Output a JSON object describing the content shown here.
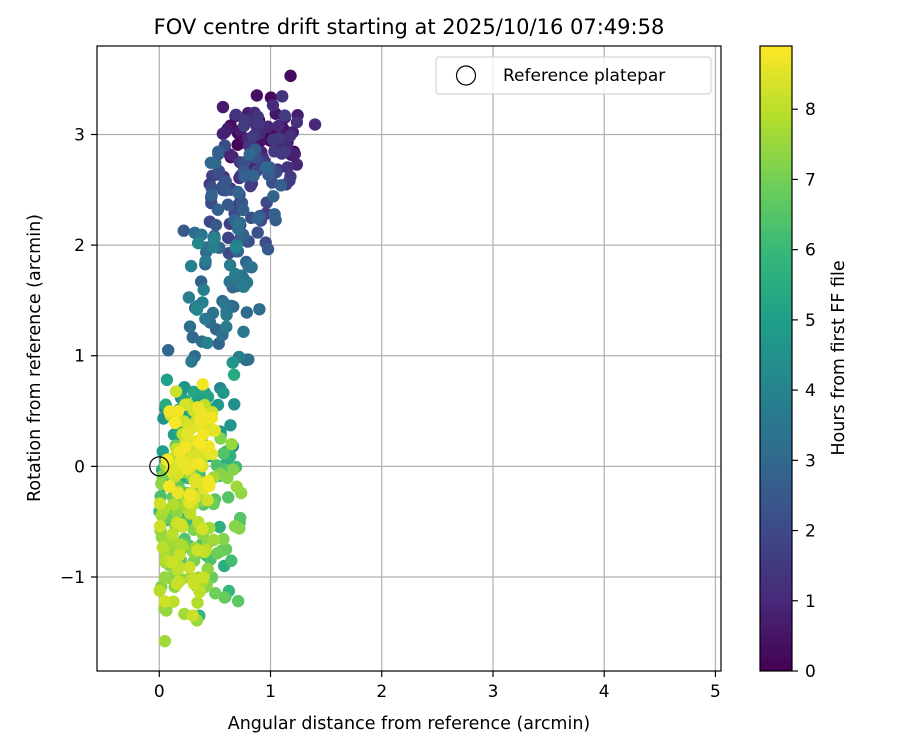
{
  "chart_data": {
    "type": "scatter",
    "title": "FOV centre drift starting at 2025/10/16 07:49:58",
    "xlabel": "Angular distance from reference (arcmin)",
    "ylabel": "Rotation from reference (arcmin)",
    "xlim": [
      -0.56,
      5.05
    ],
    "ylim": [
      -1.85,
      3.8
    ],
    "xticks": [
      0,
      1,
      2,
      3,
      4,
      5
    ],
    "xtick_labels": [
      "0",
      "1",
      "2",
      "3",
      "4",
      "5"
    ],
    "yticks": [
      -1,
      0,
      1,
      2,
      3
    ],
    "ytick_labels": [
      "−1",
      "0",
      "1",
      "2",
      "3"
    ],
    "grid": true,
    "legend": {
      "placement": "top-right",
      "entries": [
        {
          "label": "Reference platepar",
          "marker": "open-circle"
        }
      ]
    },
    "reference_point": {
      "x": 0,
      "y": 0
    },
    "colorbar": {
      "label": "Hours from first FF file",
      "colormap": "viridis",
      "range": [
        0,
        8.9
      ],
      "ticks": [
        0,
        1,
        2,
        3,
        4,
        5,
        6,
        7,
        8
      ],
      "tick_labels": [
        "0",
        "1",
        "2",
        "3",
        "4",
        "5",
        "6",
        "7",
        "8"
      ]
    },
    "clusters": [
      {
        "count": 90,
        "x_range": [
          0.55,
          1.25
        ],
        "y_range": [
          2.4,
          3.45
        ],
        "hours_range": [
          0.0,
          1.6
        ]
      },
      {
        "count": 70,
        "x_range": [
          0.45,
          1.1
        ],
        "y_range": [
          1.8,
          3.0
        ],
        "hours_range": [
          1.5,
          3.0
        ]
      },
      {
        "count": 60,
        "x_range": [
          0.25,
          0.85
        ],
        "y_range": [
          0.9,
          2.3
        ],
        "hours_range": [
          2.8,
          4.2
        ]
      },
      {
        "count": 50,
        "x_range": [
          0.0,
          0.7
        ],
        "y_range": [
          -0.2,
          1.0
        ],
        "hours_range": [
          4.0,
          5.5
        ]
      },
      {
        "count": 90,
        "x_range": [
          0.0,
          0.75
        ],
        "y_range": [
          -1.3,
          0.3
        ],
        "hours_range": [
          5.5,
          7.8
        ]
      },
      {
        "count": 80,
        "x_range": [
          0.0,
          0.45
        ],
        "y_range": [
          -1.55,
          0.0
        ],
        "hours_range": [
          7.3,
          8.3
        ]
      },
      {
        "count": 70,
        "x_range": [
          0.05,
          0.5
        ],
        "y_range": [
          -0.4,
          0.85
        ],
        "hours_range": [
          8.0,
          8.9
        ]
      }
    ],
    "outliers": [
      {
        "x": 1.18,
        "y": 3.53,
        "hours": 0.3
      },
      {
        "x": 1.4,
        "y": 3.09,
        "hours": 1.0
      },
      {
        "x": 0.9,
        "y": 1.42,
        "hours": 3.2
      },
      {
        "x": 0.22,
        "y": 2.13,
        "hours": 2.5
      },
      {
        "x": 0.08,
        "y": 1.05,
        "hours": 3.0
      },
      {
        "x": 0.65,
        "y": 0.2,
        "hours": 7.5
      },
      {
        "x": 0.05,
        "y": -1.58,
        "hours": 7.6
      },
      {
        "x": 0.36,
        "y": -1.35,
        "hours": 5.8
      },
      {
        "x": 0.62,
        "y": -0.28,
        "hours": 6.5
      },
      {
        "x": 0.6,
        "y": -0.75,
        "hours": 6.8
      }
    ]
  }
}
